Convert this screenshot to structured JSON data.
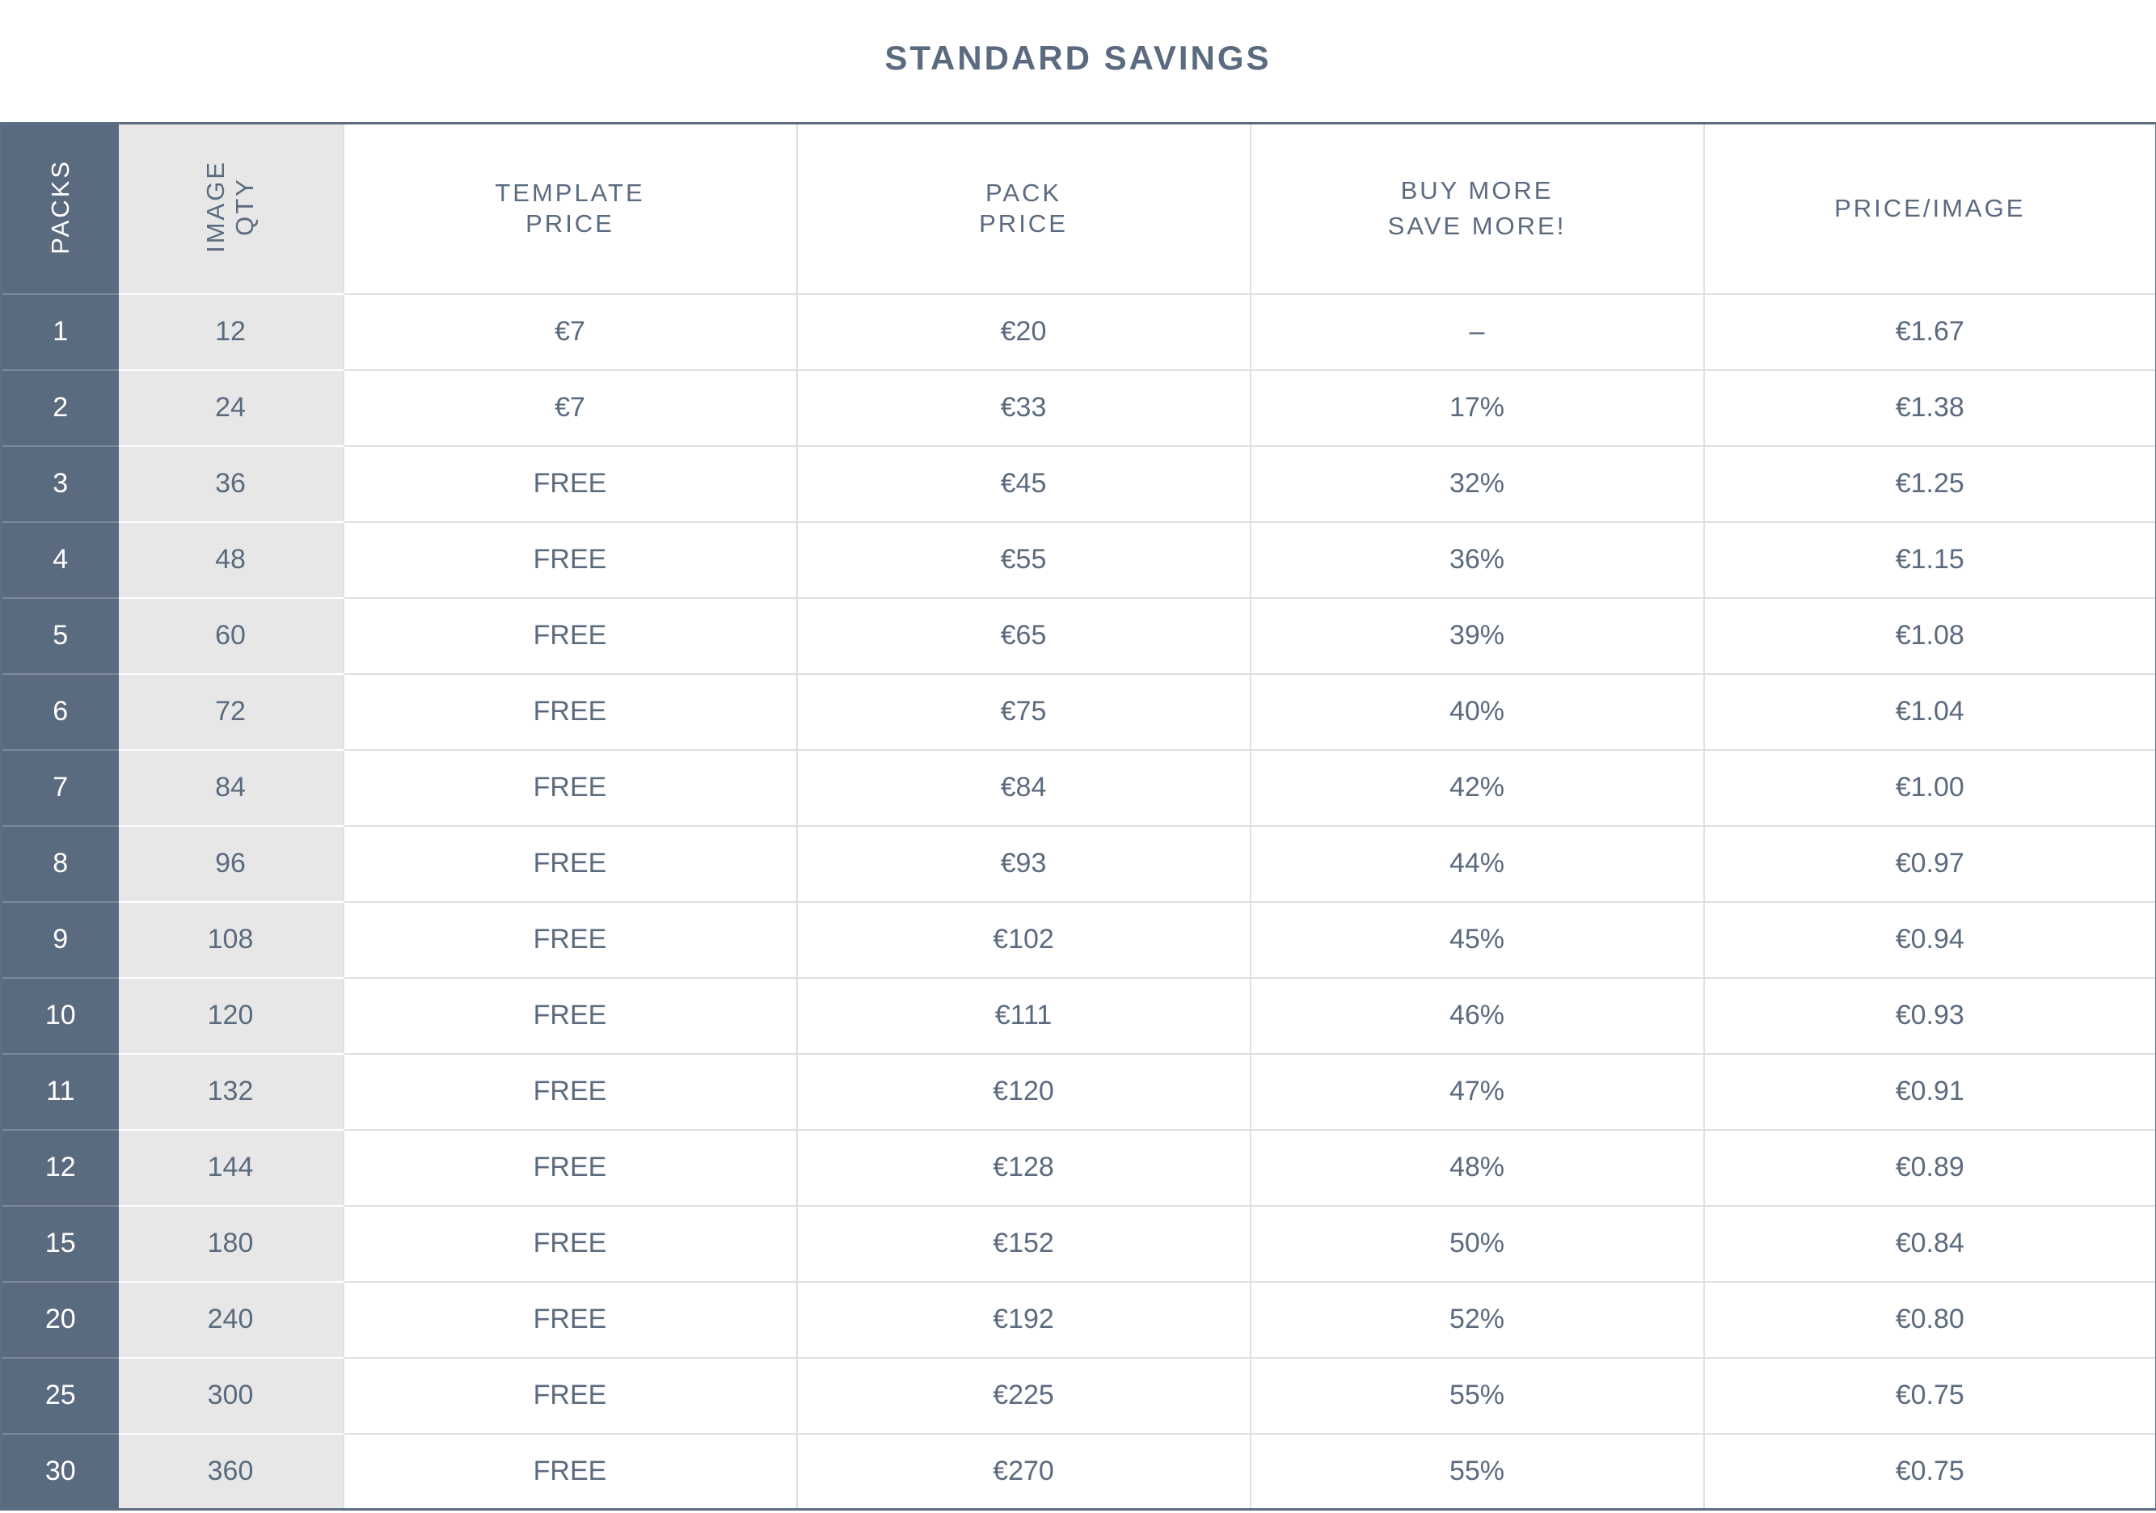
{
  "title": "STANDARD SAVINGS",
  "headers": {
    "packs": "PACKS",
    "image_qty_line1": "IMAGE",
    "image_qty_line2": "QTY",
    "template_price_line1": "TEMPLATE",
    "template_price_line2": "PRICE",
    "pack_price_line1": "PACK",
    "pack_price_line2": "PRICE",
    "buy_more_line1": "BUY MORE",
    "buy_more_line2": "SAVE MORE!",
    "price_per_image": "PRICE/IMAGE"
  },
  "colors": {
    "header_dark": "#5b6b7f",
    "qty_column": "#e7e7e7",
    "text": "#5b6b7f",
    "grid": "#dcdfe3"
  },
  "chart_data": {
    "type": "table",
    "title": "STANDARD SAVINGS",
    "columns": [
      "PACKS",
      "IMAGE QTY",
      "TEMPLATE PRICE",
      "PACK PRICE",
      "BUY MORE SAVE MORE!",
      "PRICE/IMAGE"
    ],
    "rows": [
      [
        "1",
        "12",
        "€7",
        "€20",
        "–",
        "€1.67"
      ],
      [
        "2",
        "24",
        "€7",
        "€33",
        "17%",
        "€1.38"
      ],
      [
        "3",
        "36",
        "FREE",
        "€45",
        "32%",
        "€1.25"
      ],
      [
        "4",
        "48",
        "FREE",
        "€55",
        "36%",
        "€1.15"
      ],
      [
        "5",
        "60",
        "FREE",
        "€65",
        "39%",
        "€1.08"
      ],
      [
        "6",
        "72",
        "FREE",
        "€75",
        "40%",
        "€1.04"
      ],
      [
        "7",
        "84",
        "FREE",
        "€84",
        "42%",
        "€1.00"
      ],
      [
        "8",
        "96",
        "FREE",
        "€93",
        "44%",
        "€0.97"
      ],
      [
        "9",
        "108",
        "FREE",
        "€102",
        "45%",
        "€0.94"
      ],
      [
        "10",
        "120",
        "FREE",
        "€111",
        "46%",
        "€0.93"
      ],
      [
        "11",
        "132",
        "FREE",
        "€120",
        "47%",
        "€0.91"
      ],
      [
        "12",
        "144",
        "FREE",
        "€128",
        "48%",
        "€0.89"
      ],
      [
        "15",
        "180",
        "FREE",
        "€152",
        "50%",
        "€0.84"
      ],
      [
        "20",
        "240",
        "FREE",
        "€192",
        "52%",
        "€0.80"
      ],
      [
        "25",
        "300",
        "FREE",
        "€225",
        "55%",
        "€0.75"
      ],
      [
        "30",
        "360",
        "FREE",
        "€270",
        "55%",
        "€0.75"
      ]
    ]
  }
}
